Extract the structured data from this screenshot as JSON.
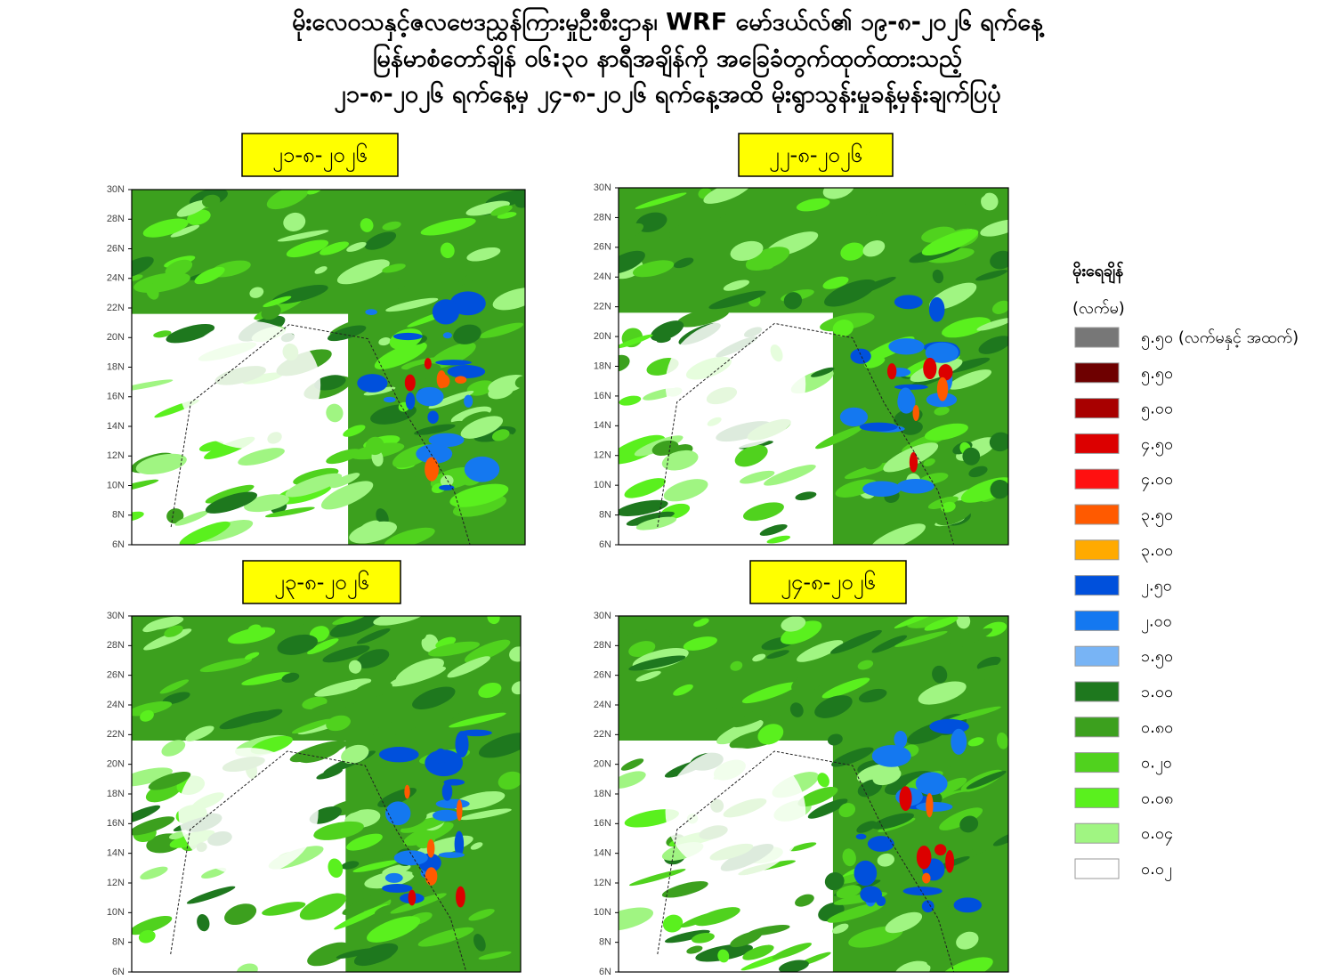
{
  "header": {
    "lines": [
      "မိုးလေဝသနှင့်ဇလဗေဒညွှန်ကြားမှုဦးစီးဌာန၊ WRF မော်ဒယ်လ်၏ ၁၉-၈-၂၀၂၆ ရက်နေ့",
      "မြန်မာစံတော်ချိန် ၀၆:၃၀ နာရီအချိန်ကို အခြေခံတွက်ထုတ်ထားသည့်",
      "၂၁-၈-၂၀၂၆ ရက်နေ့မှ ၂၄-၈-၂၀၂၆ ရက်နေ့အထိ မိုးရွာသွန်းမှုခန့်မှန်းချက်ပြပုံ"
    ]
  },
  "panels": [
    {
      "date": "၂၁-၈-၂၀၂၆"
    },
    {
      "date": "၂၂-၈-၂၀၂၆"
    },
    {
      "date": "၂၃-၈-၂၀၂၆"
    },
    {
      "date": "၂၄-၈-၂၀၂၆"
    }
  ],
  "lat_ticks": [
    "30N",
    "28N",
    "26N",
    "24N",
    "22N",
    "20N",
    "18N",
    "16N",
    "14N",
    "12N",
    "10N",
    "8N",
    "6N"
  ],
  "legend": {
    "title": "မိုးရေချိန်",
    "unit": "(လက်မ)",
    "items": [
      {
        "label": "၅.၅၀ (လက်မနှင့် အထက်)",
        "color": "#777777"
      },
      {
        "label": "၅.၅၀",
        "color": "#6e0000"
      },
      {
        "label": "၅.၀၀",
        "color": "#a80000"
      },
      {
        "label": "၄.၅၀",
        "color": "#dc0000"
      },
      {
        "label": "၄.၀၀",
        "color": "#ff1010"
      },
      {
        "label": "၃.၅၀",
        "color": "#ff5a00"
      },
      {
        "label": "၃.၀၀",
        "color": "#ffaa00"
      },
      {
        "label": "၂.၅၀",
        "color": "#0050dc"
      },
      {
        "label": "၂.၀၀",
        "color": "#1478f0"
      },
      {
        "label": "၁.၅၀",
        "color": "#78b4f5"
      },
      {
        "label": "၁.၀၀",
        "color": "#1e781e"
      },
      {
        "label": "၀.၈၀",
        "color": "#3ca01e"
      },
      {
        "label": "၀.၂၀",
        "color": "#50d21e"
      },
      {
        "label": "၀.၀၈",
        "color": "#5af01e"
      },
      {
        "label": "၀.၀၄",
        "color": "#a0f582"
      },
      {
        "label": "၀.၀၂",
        "color": "#ffffff"
      }
    ]
  }
}
